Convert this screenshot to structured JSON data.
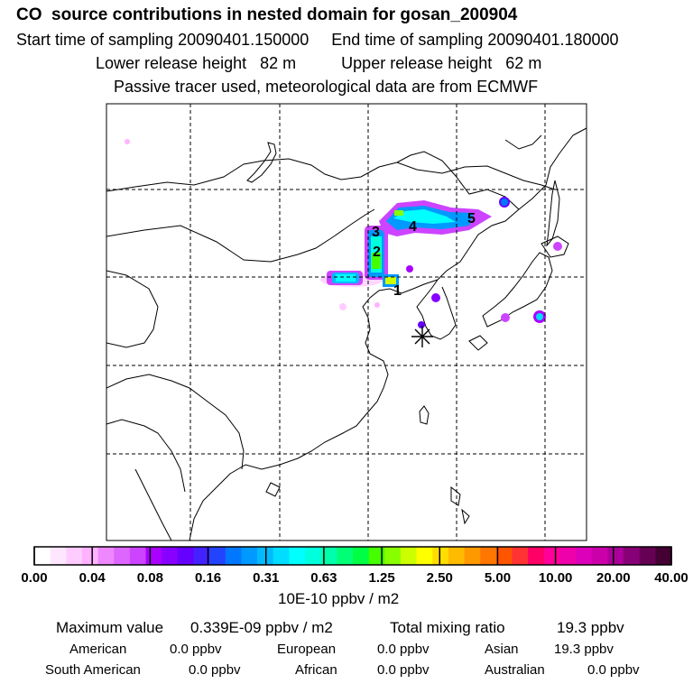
{
  "header": {
    "title": "CO  source contributions in nested domain for gosan_200904",
    "sampling_start_label": "Start time of sampling",
    "sampling_start": "20090401.150000",
    "sampling_end_label": "End time of sampling",
    "sampling_end": "20090401.180000",
    "lower_label": "Lower release height",
    "lower_value": "82 m",
    "upper_label": "Upper release height",
    "upper_value": "62 m",
    "tracer_note": "Passive tracer used, meteorological data are from ECMWF"
  },
  "map": {
    "receptor_marker": "asterisk-receptor",
    "source_labels": [
      "1",
      "2",
      "3",
      "4",
      "5"
    ]
  },
  "colorbar": {
    "tick_labels": [
      "0.00",
      "0.04",
      "0.08",
      "0.16",
      "0.31",
      "0.63",
      "1.25",
      "2.50",
      "5.00",
      "10.00",
      "20.00",
      "40.00"
    ],
    "colors": [
      "#ffffff",
      "#ffe6ff",
      "#ffccff",
      "#ffb3ff",
      "#ee88ff",
      "#dd66ff",
      "#cc44ff",
      "#aa00ff",
      "#8800ff",
      "#6600ff",
      "#4422ff",
      "#2244ff",
      "#0077ff",
      "#0099ff",
      "#00bbff",
      "#00ddff",
      "#00ffff",
      "#00ffdd",
      "#00ffaa",
      "#00ff77",
      "#00ff44",
      "#44ff00",
      "#88ff00",
      "#ccff00",
      "#ffff00",
      "#ffdd00",
      "#ffbb00",
      "#ff9900",
      "#ff7700",
      "#ff5500",
      "#ff3333",
      "#ff0066",
      "#ff0099",
      "#ee00aa",
      "#dd00bb",
      "#cc00aa",
      "#aa0099",
      "#880077",
      "#660055",
      "#440033"
    ],
    "unit": "10E-10 ppbv / m2"
  },
  "stats": {
    "max_label": "Maximum value",
    "max_value": "0.339E-09 ppbv / m2",
    "total_label": "Total mixing ratio",
    "total_value": "19.3 ppbv",
    "american_label": "American",
    "american_value": "0.0 ppbv",
    "european_label": "European",
    "european_value": "0.0 ppbv",
    "asian_label": "Asian",
    "asian_value": "19.3 ppbv",
    "south_american_label": "South American",
    "south_american_value": "0.0 ppbv",
    "african_label": "African",
    "african_value": "0.0 ppbv",
    "australian_label": "Australian",
    "australian_value": "0.0 ppbv"
  }
}
